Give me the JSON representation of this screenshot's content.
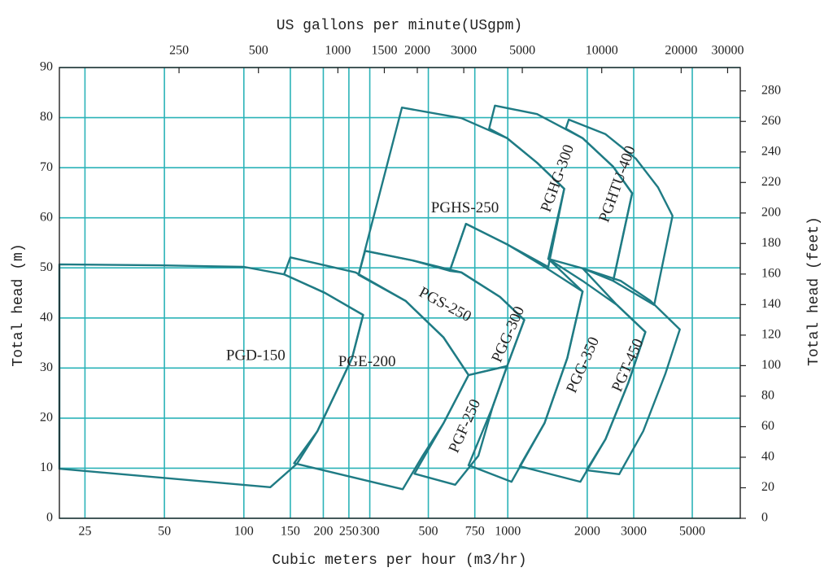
{
  "chart_data": {
    "type": "polygon",
    "title": "US gallons per minute(USgpm)",
    "xlabel": "Cubic meters per hour (m3/hr)",
    "ylabel": "Total head (m)",
    "y2label": "Total head (feet)",
    "xscale": "log",
    "x2scale": "log",
    "grid": true,
    "grid_color": "#2bb3b8",
    "color": "#1f7b84",
    "xlim": [
      20,
      7600
    ],
    "xticks": [
      25,
      50,
      100,
      150,
      200,
      250,
      300,
      500,
      750,
      1000,
      2000,
      3000,
      5000
    ],
    "x2lim": [
      88,
      33500
    ],
    "x2ticks": [
      250,
      500,
      1000,
      1500,
      2000,
      3000,
      5000,
      10000,
      20000,
      30000
    ],
    "ylim": [
      0,
      90
    ],
    "yticks": [
      0,
      10,
      20,
      30,
      40,
      50,
      60,
      70,
      80,
      90
    ],
    "y2lim": [
      0,
      295.3
    ],
    "y2ticks": [
      0,
      20,
      40,
      60,
      80,
      100,
      120,
      140,
      160,
      180,
      200,
      220,
      240,
      260,
      280
    ],
    "regions": [
      {
        "name": "PGD-150",
        "points": [
          [
            20,
            50.7
          ],
          [
            48,
            50.5
          ],
          [
            100,
            50.2
          ],
          [
            142,
            48.7
          ],
          [
            203,
            45.0
          ],
          [
            283,
            40.6
          ],
          [
            257,
            32.0
          ],
          [
            225,
            25.5
          ],
          [
            190,
            17.4
          ],
          [
            159,
            10.9
          ],
          [
            126,
            6.2
          ],
          [
            20,
            9.9
          ]
        ]
      },
      {
        "name": "PGE-200",
        "points": [
          [
            142,
            48.7
          ],
          [
            150,
            52.1
          ],
          [
            265,
            49.1
          ],
          [
            410,
            43.4
          ],
          [
            571,
            36.1
          ],
          [
            710,
            28.6
          ],
          [
            571,
            19.0
          ],
          [
            476,
            12.5
          ],
          [
            400,
            5.8
          ],
          [
            155,
            11.0
          ],
          [
            190,
            17.4
          ],
          [
            225,
            25.5
          ],
          [
            257,
            32.0
          ],
          [
            283,
            40.6
          ],
          [
            203,
            45.0
          ]
        ]
      },
      {
        "name": "PGS-250",
        "points": [
          [
            272,
            48.6
          ],
          [
            288,
            53.4
          ],
          [
            435,
            51.5
          ],
          [
            667,
            49.1
          ],
          [
            934,
            44.2
          ],
          [
            1155,
            39.6
          ],
          [
            994,
            30.4
          ],
          [
            710,
            28.6
          ],
          [
            571,
            36.1
          ],
          [
            410,
            43.4
          ]
        ]
      },
      {
        "name": "PGF-250",
        "points": [
          [
            710,
            28.6
          ],
          [
            994,
            30.4
          ],
          [
            877,
            22.3
          ],
          [
            774,
            12.5
          ],
          [
            632,
            6.7
          ],
          [
            443,
            8.9
          ],
          [
            571,
            19.0
          ]
        ]
      },
      {
        "name": "PGG-300",
        "points": [
          [
            603,
            49.4
          ],
          [
            694,
            58.8
          ],
          [
            994,
            54.7
          ],
          [
            1378,
            50.2
          ],
          [
            1921,
            45.3
          ],
          [
            1681,
            32.0
          ],
          [
            1378,
            19.0
          ],
          [
            1033,
            7.3
          ],
          [
            710,
            10.6
          ],
          [
            877,
            22.3
          ],
          [
            994,
            30.4
          ],
          [
            1155,
            39.6
          ],
          [
            934,
            44.2
          ],
          [
            667,
            49.1
          ]
        ]
      },
      {
        "name": "PGHS-250",
        "points": [
          [
            272,
            48.6
          ],
          [
            397,
            82.0
          ],
          [
            667,
            79.9
          ],
          [
            994,
            75.9
          ],
          [
            1291,
            71.0
          ],
          [
            1636,
            65.8
          ],
          [
            1424,
            50.2
          ],
          [
            994,
            54.7
          ],
          [
            694,
            58.8
          ],
          [
            603,
            49.4
          ],
          [
            435,
            51.5
          ],
          [
            288,
            53.4
          ]
        ]
      },
      {
        "name": "PGG-350",
        "points": [
          [
            1424,
            51.8
          ],
          [
            1921,
            47.4
          ],
          [
            2592,
            42.6
          ],
          [
            3323,
            37.2
          ],
          [
            2864,
            27.1
          ],
          [
            2346,
            15.8
          ],
          [
            1883,
            7.3
          ],
          [
            1110,
            10.4
          ],
          [
            1378,
            19.0
          ],
          [
            1681,
            32.0
          ],
          [
            1921,
            45.3
          ]
        ]
      },
      {
        "name": "PGT-450",
        "points": [
          [
            1921,
            49.9
          ],
          [
            2680,
            47.4
          ],
          [
            3475,
            43.4
          ],
          [
            4486,
            37.7
          ],
          [
            3949,
            28.8
          ],
          [
            3260,
            17.4
          ],
          [
            2644,
            8.8
          ],
          [
            1987,
            9.6
          ],
          [
            2346,
            15.8
          ],
          [
            2864,
            27.1
          ],
          [
            3323,
            37.2
          ],
          [
            2592,
            42.6
          ]
        ]
      },
      {
        "name": "PGHG-300",
        "points": [
          [
            850,
            77.8
          ],
          [
            894,
            82.4
          ],
          [
            1291,
            80.7
          ],
          [
            1921,
            75.9
          ],
          [
            2508,
            70.2
          ],
          [
            2960,
            64.9
          ],
          [
            2508,
            47.4
          ],
          [
            1921,
            49.9
          ],
          [
            1424,
            51.8
          ],
          [
            1636,
            65.8
          ],
          [
            1291,
            71.0
          ],
          [
            994,
            75.9
          ]
        ]
      },
      {
        "name": "PGHTU-400",
        "points": [
          [
            1658,
            77.8
          ],
          [
            1703,
            79.6
          ],
          [
            2346,
            76.7
          ],
          [
            3058,
            71.8
          ],
          [
            3705,
            66.1
          ],
          [
            4209,
            60.4
          ],
          [
            3588,
            42.6
          ],
          [
            2508,
            47.4
          ],
          [
            2960,
            64.9
          ],
          [
            2508,
            70.2
          ],
          [
            1921,
            75.9
          ]
        ]
      }
    ]
  }
}
